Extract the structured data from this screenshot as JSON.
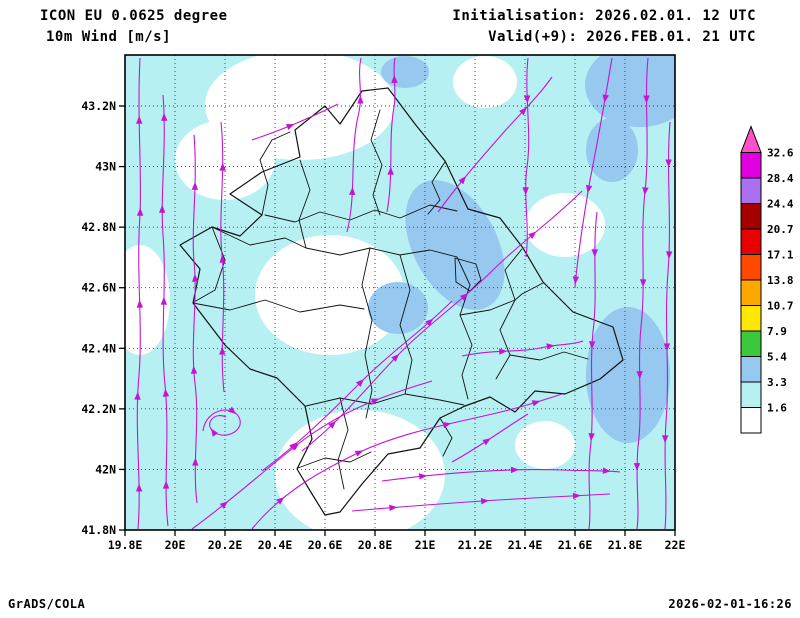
{
  "header": {
    "model": "ICON EU 0.0625 degree",
    "variable": "10m Wind [m/s]",
    "initialisation": "Initialisation: 2026.02.01. 12 UTC",
    "valid": "Valid(+9): 2026.FEB.01. 21 UTC"
  },
  "footer": {
    "credit": "GrADS/COLA",
    "timestamp": "2026-02-01-16:26"
  },
  "axes": {
    "x_ticks": [
      "19.8E",
      "20E",
      "20.2E",
      "20.4E",
      "20.6E",
      "20.8E",
      "21E",
      "21.2E",
      "21.4E",
      "21.6E",
      "21.8E",
      "22E"
    ],
    "y_ticks_bottom_to_top": [
      "41.8N",
      "42N",
      "42.2N",
      "42.4N",
      "42.6N",
      "42.8N",
      "43N",
      "43.2N"
    ]
  },
  "colorbar": {
    "labels_top_to_bottom": [
      "32.6",
      "28.4",
      "24.4",
      "20.7",
      "17.1",
      "13.8",
      "10.7",
      "7.9",
      "5.4",
      "3.3",
      "1.6"
    ],
    "colors_top_to_bottom": [
      "#e000e0",
      "#aa70f0",
      "#a40000",
      "#e80000",
      "#ff4800",
      "#ffa800",
      "#ffe800",
      "#3cc83c",
      "#96c8f0",
      "#b6f0f2",
      "#ffffff"
    ],
    "arrow_color": "#ff50c8"
  },
  "map": {
    "colors": {
      "shade_calm": "#ffffff",
      "shade_light": "#b6f0f2",
      "shade_medium": "#96c8f0",
      "stream": "#c216d2",
      "border": "#111111",
      "grid": "#3a3a3a"
    }
  },
  "chart_data": {
    "type": "heatmap",
    "field": "10m wind speed [m/s] shading with wind streamlines",
    "region": {
      "lon_min": 19.8,
      "lon_max": 22.0,
      "lat_min": 41.8,
      "lat_max": 43.2
    },
    "shade_levels": [
      1.6,
      3.3,
      5.4,
      7.9,
      10.7,
      13.8,
      17.1,
      20.7,
      24.4,
      28.4,
      32.6
    ],
    "observed": "winds mostly 0-5.4 m/s: 1.6-3.3 shading widespread, 3.3-5.4 patches over north-central area, eastern edge and northeast corner"
  }
}
